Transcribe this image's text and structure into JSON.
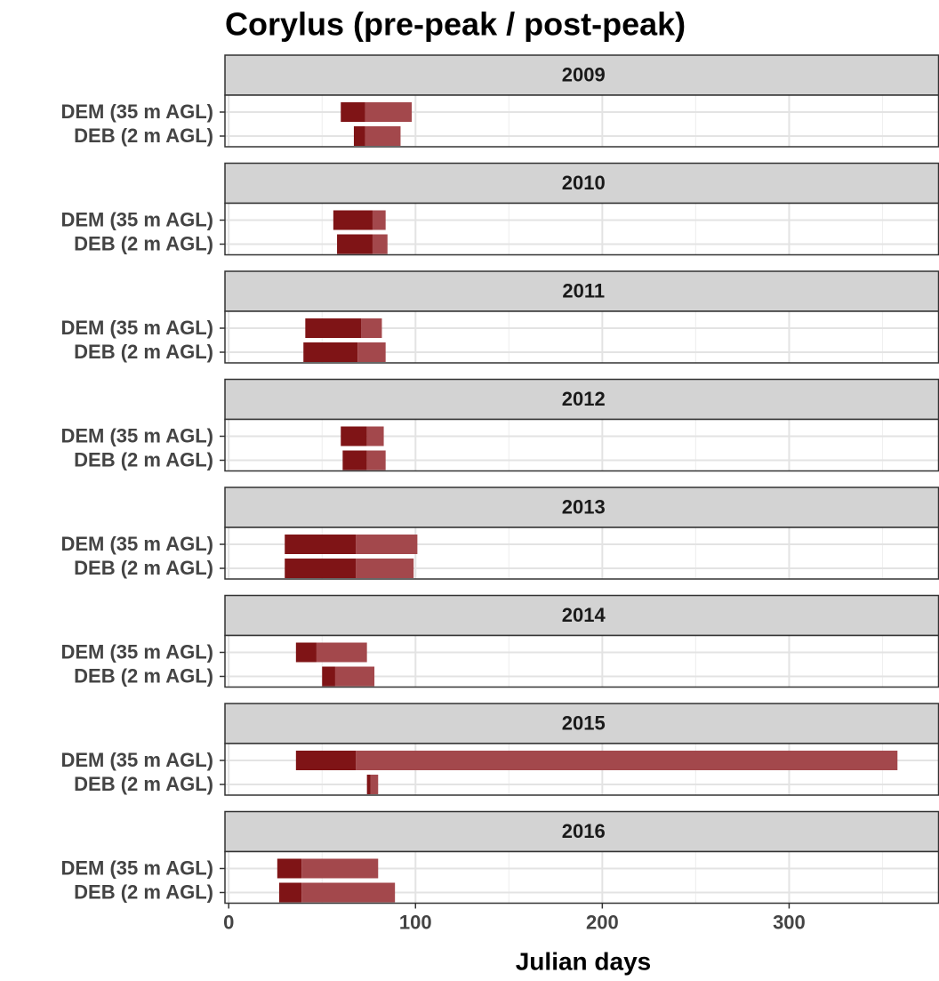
{
  "chart_data": {
    "type": "range_bar",
    "title": "Corylus (pre-peak / post-peak)",
    "x_label": "Julian days",
    "xlim": [
      -2,
      380
    ],
    "xticks": [
      0,
      100,
      200,
      300
    ],
    "minor_xticks": [
      50,
      150,
      250,
      350
    ],
    "grid": true,
    "pre_color": "#7f1416",
    "post_color": "#a3484c",
    "panels": [
      {
        "title": "2009",
        "categories": [
          "DEM (35 m AGL)",
          "DEB (2 m AGL)"
        ],
        "start": [
          60,
          67
        ],
        "peak": [
          73,
          73
        ],
        "end": [
          98,
          92
        ]
      },
      {
        "title": "2010",
        "categories": [
          "DEM (35 m AGL)",
          "DEB (2 m AGL)"
        ],
        "start": [
          56,
          58
        ],
        "peak": [
          77,
          77
        ],
        "end": [
          84,
          85
        ]
      },
      {
        "title": "2011",
        "categories": [
          "DEM (35 m AGL)",
          "DEB (2 m AGL)"
        ],
        "start": [
          41,
          40
        ],
        "peak": [
          71,
          69
        ],
        "end": [
          82,
          84
        ]
      },
      {
        "title": "2012",
        "categories": [
          "DEM (35 m AGL)",
          "DEB (2 m AGL)"
        ],
        "start": [
          60,
          61
        ],
        "peak": [
          74,
          74
        ],
        "end": [
          83,
          84
        ]
      },
      {
        "title": "2013",
        "categories": [
          "DEM (35 m AGL)",
          "DEB (2 m AGL)"
        ],
        "start": [
          30,
          30
        ],
        "peak": [
          68,
          68
        ],
        "end": [
          101,
          99
        ]
      },
      {
        "title": "2014",
        "categories": [
          "DEM (35 m AGL)",
          "DEB (2 m AGL)"
        ],
        "start": [
          36,
          50
        ],
        "peak": [
          47,
          57
        ],
        "end": [
          74,
          78
        ]
      },
      {
        "title": "2015",
        "categories": [
          "DEM (35 m AGL)",
          "DEB (2 m AGL)"
        ],
        "start": [
          36,
          74
        ],
        "peak": [
          68,
          76
        ],
        "end": [
          358,
          80
        ]
      },
      {
        "title": "2016",
        "categories": [
          "DEM (35 m AGL)",
          "DEB (2 m AGL)"
        ],
        "start": [
          26,
          27
        ],
        "peak": [
          39,
          39
        ],
        "end": [
          80,
          89
        ]
      }
    ]
  }
}
